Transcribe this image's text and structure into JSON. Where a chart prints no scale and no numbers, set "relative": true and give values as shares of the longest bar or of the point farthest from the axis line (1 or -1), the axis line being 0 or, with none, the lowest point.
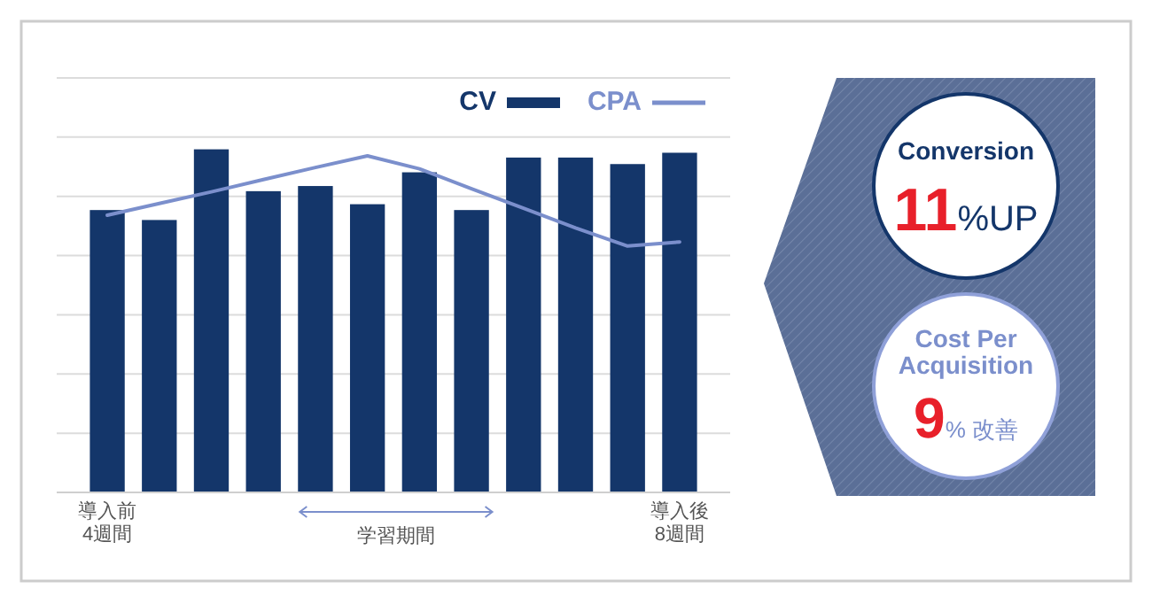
{
  "chart_data": [
    {
      "type": "bar",
      "relative": true,
      "categories": [
        "導入前\n4週間",
        null,
        null,
        null,
        null,
        null,
        null,
        null,
        null,
        null,
        null,
        "導入後\n8週間"
      ],
      "series": [
        {
          "name": "CV",
          "type": "bar",
          "color": "#14366a",
          "values": [
            0.823,
            0.794,
            1,
            0.878,
            0.893,
            0.84,
            0.933,
            0.823,
            0.976,
            0.976,
            0.957,
            0.99
          ]
        },
        {
          "name": "CPA",
          "type": "line",
          "color": "#7b8fcc",
          "values": [
            0.808,
            0.842,
            0.876,
            0.912,
            0.947,
            0.981,
            0.943,
            0.885,
            0.828,
            0.771,
            0.718,
            0.73
          ]
        }
      ],
      "grid": true,
      "legend": "top right",
      "marker": "none",
      "annotations": [
        "学習期間"
      ]
    },
    {
      "type": "other",
      "annotations": [
        "Conversion",
        "11",
        "%UP",
        "Cost Per Acquisition",
        "9",
        "% 改善"
      ]
    }
  ]
}
